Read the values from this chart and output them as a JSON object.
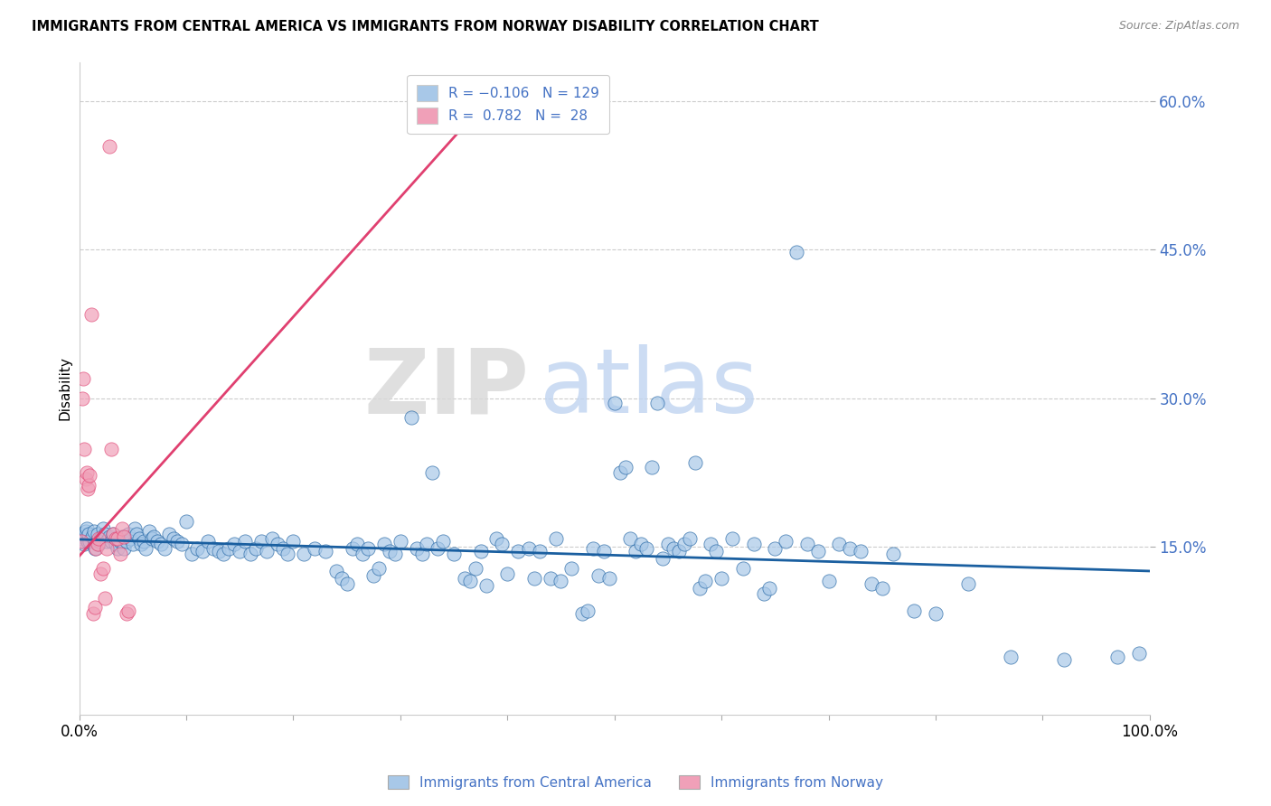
{
  "title": "IMMIGRANTS FROM CENTRAL AMERICA VS IMMIGRANTS FROM NORWAY DISABILITY CORRELATION CHART",
  "source": "Source: ZipAtlas.com",
  "ylabel": "Disability",
  "color_blue": "#a8c8e8",
  "color_pink": "#f0a0b8",
  "line_blue": "#1a5fa0",
  "line_pink": "#e04070",
  "watermark_zip": "ZIP",
  "watermark_atlas": "atlas",
  "xlim": [
    0.0,
    1.0
  ],
  "ylim": [
    -0.02,
    0.64
  ],
  "y_tick_vals": [
    0.15,
    0.3,
    0.45,
    0.6
  ],
  "y_tick_labels": [
    "15.0%",
    "30.0%",
    "45.0%",
    "60.0%"
  ],
  "blue_line_x": [
    0.0,
    1.0
  ],
  "blue_line_y": [
    0.157,
    0.125
  ],
  "pink_line_x": [
    0.0,
    0.38
  ],
  "pink_line_y": [
    0.14,
    0.6
  ],
  "blue_scatter": [
    [
      0.001,
      0.162
    ],
    [
      0.002,
      0.155
    ],
    [
      0.003,
      0.158
    ],
    [
      0.004,
      0.16
    ],
    [
      0.005,
      0.152
    ],
    [
      0.006,
      0.165
    ],
    [
      0.007,
      0.168
    ],
    [
      0.008,
      0.155
    ],
    [
      0.009,
      0.162
    ],
    [
      0.01,
      0.155
    ],
    [
      0.012,
      0.16
    ],
    [
      0.014,
      0.165
    ],
    [
      0.015,
      0.148
    ],
    [
      0.017,
      0.162
    ],
    [
      0.018,
      0.152
    ],
    [
      0.019,
      0.155
    ],
    [
      0.02,
      0.158
    ],
    [
      0.022,
      0.168
    ],
    [
      0.024,
      0.162
    ],
    [
      0.026,
      0.155
    ],
    [
      0.028,
      0.16
    ],
    [
      0.03,
      0.155
    ],
    [
      0.032,
      0.162
    ],
    [
      0.034,
      0.152
    ],
    [
      0.036,
      0.148
    ],
    [
      0.038,
      0.155
    ],
    [
      0.04,
      0.16
    ],
    [
      0.042,
      0.148
    ],
    [
      0.044,
      0.155
    ],
    [
      0.046,
      0.162
    ],
    [
      0.048,
      0.158
    ],
    [
      0.05,
      0.152
    ],
    [
      0.052,
      0.168
    ],
    [
      0.054,
      0.162
    ],
    [
      0.056,
      0.158
    ],
    [
      0.058,
      0.152
    ],
    [
      0.06,
      0.155
    ],
    [
      0.062,
      0.148
    ],
    [
      0.065,
      0.165
    ],
    [
      0.068,
      0.158
    ],
    [
      0.07,
      0.16
    ],
    [
      0.073,
      0.155
    ],
    [
      0.076,
      0.152
    ],
    [
      0.08,
      0.148
    ],
    [
      0.084,
      0.162
    ],
    [
      0.088,
      0.158
    ],
    [
      0.092,
      0.155
    ],
    [
      0.096,
      0.152
    ],
    [
      0.1,
      0.175
    ],
    [
      0.105,
      0.142
    ],
    [
      0.11,
      0.148
    ],
    [
      0.115,
      0.145
    ],
    [
      0.12,
      0.155
    ],
    [
      0.125,
      0.148
    ],
    [
      0.13,
      0.145
    ],
    [
      0.135,
      0.142
    ],
    [
      0.14,
      0.148
    ],
    [
      0.145,
      0.152
    ],
    [
      0.15,
      0.145
    ],
    [
      0.155,
      0.155
    ],
    [
      0.16,
      0.142
    ],
    [
      0.165,
      0.148
    ],
    [
      0.17,
      0.155
    ],
    [
      0.175,
      0.145
    ],
    [
      0.18,
      0.158
    ],
    [
      0.185,
      0.152
    ],
    [
      0.19,
      0.148
    ],
    [
      0.195,
      0.142
    ],
    [
      0.2,
      0.155
    ],
    [
      0.21,
      0.142
    ],
    [
      0.22,
      0.148
    ],
    [
      0.23,
      0.145
    ],
    [
      0.24,
      0.125
    ],
    [
      0.245,
      0.118
    ],
    [
      0.25,
      0.112
    ],
    [
      0.255,
      0.148
    ],
    [
      0.26,
      0.152
    ],
    [
      0.265,
      0.142
    ],
    [
      0.27,
      0.148
    ],
    [
      0.275,
      0.12
    ],
    [
      0.28,
      0.128
    ],
    [
      0.285,
      0.152
    ],
    [
      0.29,
      0.145
    ],
    [
      0.295,
      0.142
    ],
    [
      0.3,
      0.155
    ],
    [
      0.31,
      0.28
    ],
    [
      0.315,
      0.148
    ],
    [
      0.32,
      0.142
    ],
    [
      0.325,
      0.152
    ],
    [
      0.33,
      0.225
    ],
    [
      0.335,
      0.148
    ],
    [
      0.34,
      0.155
    ],
    [
      0.35,
      0.142
    ],
    [
      0.36,
      0.118
    ],
    [
      0.365,
      0.115
    ],
    [
      0.37,
      0.128
    ],
    [
      0.375,
      0.145
    ],
    [
      0.38,
      0.11
    ],
    [
      0.39,
      0.158
    ],
    [
      0.395,
      0.152
    ],
    [
      0.4,
      0.122
    ],
    [
      0.41,
      0.145
    ],
    [
      0.42,
      0.148
    ],
    [
      0.425,
      0.118
    ],
    [
      0.43,
      0.145
    ],
    [
      0.44,
      0.118
    ],
    [
      0.445,
      0.158
    ],
    [
      0.45,
      0.115
    ],
    [
      0.46,
      0.128
    ],
    [
      0.47,
      0.082
    ],
    [
      0.475,
      0.085
    ],
    [
      0.48,
      0.148
    ],
    [
      0.485,
      0.12
    ],
    [
      0.49,
      0.145
    ],
    [
      0.495,
      0.118
    ],
    [
      0.5,
      0.295
    ],
    [
      0.505,
      0.225
    ],
    [
      0.51,
      0.23
    ],
    [
      0.515,
      0.158
    ],
    [
      0.52,
      0.145
    ],
    [
      0.525,
      0.152
    ],
    [
      0.53,
      0.148
    ],
    [
      0.535,
      0.23
    ],
    [
      0.54,
      0.295
    ],
    [
      0.545,
      0.138
    ],
    [
      0.55,
      0.152
    ],
    [
      0.555,
      0.148
    ],
    [
      0.56,
      0.145
    ],
    [
      0.565,
      0.152
    ],
    [
      0.57,
      0.158
    ],
    [
      0.575,
      0.235
    ],
    [
      0.58,
      0.108
    ],
    [
      0.585,
      0.115
    ],
    [
      0.59,
      0.152
    ],
    [
      0.595,
      0.145
    ],
    [
      0.6,
      0.118
    ],
    [
      0.61,
      0.158
    ],
    [
      0.62,
      0.128
    ],
    [
      0.63,
      0.152
    ],
    [
      0.64,
      0.102
    ],
    [
      0.645,
      0.108
    ],
    [
      0.65,
      0.148
    ],
    [
      0.66,
      0.155
    ],
    [
      0.67,
      0.448
    ],
    [
      0.68,
      0.152
    ],
    [
      0.69,
      0.145
    ],
    [
      0.7,
      0.115
    ],
    [
      0.71,
      0.152
    ],
    [
      0.72,
      0.148
    ],
    [
      0.73,
      0.145
    ],
    [
      0.74,
      0.112
    ],
    [
      0.75,
      0.108
    ],
    [
      0.76,
      0.142
    ],
    [
      0.78,
      0.085
    ],
    [
      0.8,
      0.082
    ],
    [
      0.83,
      0.112
    ],
    [
      0.87,
      0.038
    ],
    [
      0.92,
      0.035
    ],
    [
      0.97,
      0.038
    ],
    [
      0.99,
      0.042
    ]
  ],
  "pink_scatter": [
    [
      0.002,
      0.155
    ],
    [
      0.003,
      0.3
    ],
    [
      0.004,
      0.32
    ],
    [
      0.005,
      0.248
    ],
    [
      0.006,
      0.218
    ],
    [
      0.007,
      0.225
    ],
    [
      0.008,
      0.208
    ],
    [
      0.009,
      0.212
    ],
    [
      0.01,
      0.222
    ],
    [
      0.011,
      0.385
    ],
    [
      0.013,
      0.082
    ],
    [
      0.015,
      0.088
    ],
    [
      0.016,
      0.148
    ],
    [
      0.017,
      0.152
    ],
    [
      0.018,
      0.158
    ],
    [
      0.02,
      0.122
    ],
    [
      0.022,
      0.128
    ],
    [
      0.024,
      0.098
    ],
    [
      0.026,
      0.148
    ],
    [
      0.028,
      0.555
    ],
    [
      0.03,
      0.248
    ],
    [
      0.032,
      0.162
    ],
    [
      0.034,
      0.158
    ],
    [
      0.036,
      0.158
    ],
    [
      0.038,
      0.142
    ],
    [
      0.04,
      0.168
    ],
    [
      0.042,
      0.16
    ],
    [
      0.044,
      0.082
    ],
    [
      0.046,
      0.085
    ]
  ]
}
